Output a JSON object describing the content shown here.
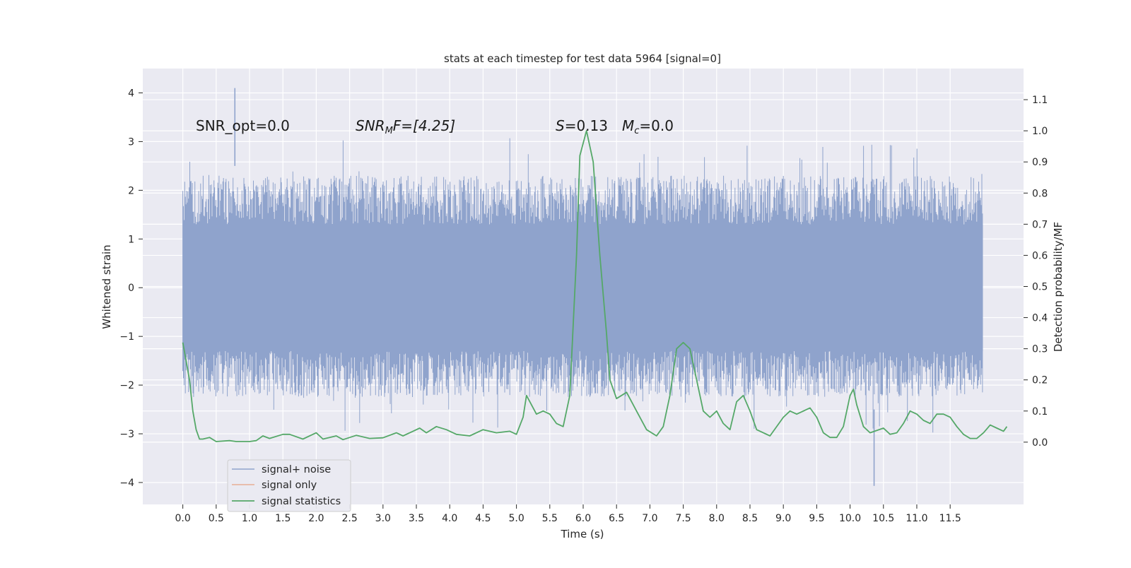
{
  "chart_data": {
    "type": "line",
    "title": "stats at each timestep for test data 5964 [signal=0]",
    "xlabel": "Time (s)",
    "ylabel": "Whitened strain",
    "ylabel_right": "Detection probability/MF",
    "xlim": [
      -0.6,
      12.6
    ],
    "ylim": [
      -4.45,
      4.5
    ],
    "ylim_right": [
      -0.2,
      1.2
    ],
    "x_ticks": [
      0.0,
      0.5,
      1.0,
      1.5,
      2.0,
      2.5,
      3.0,
      3.5,
      4.0,
      4.5,
      5.0,
      5.5,
      6.0,
      6.5,
      7.0,
      7.5,
      8.0,
      8.5,
      9.0,
      9.5,
      10.0,
      10.5,
      11.0,
      11.5
    ],
    "x_tick_labels": [
      "0.0",
      "0.5",
      "1.0",
      "1.5",
      "2.0",
      "2.5",
      "3.0",
      "3.5",
      "4.0",
      "4.5",
      "5.0",
      "5.5",
      "6.0",
      "6.5",
      "7.0",
      "7.5",
      "8.0",
      "8.5",
      "9.0",
      "9.5",
      "10.0",
      "10.5",
      "11.0",
      "11.5"
    ],
    "y_ticks": [
      4,
      3,
      2,
      1,
      0,
      -1,
      -2,
      -3,
      -4
    ],
    "y_tick_labels": [
      "4",
      "3",
      "2",
      "1",
      "0",
      "−1",
      "−2",
      "−3",
      "−4"
    ],
    "y_ticks_right": [
      1.1,
      1.0,
      0.9,
      0.8,
      0.7,
      0.6,
      0.5,
      0.4,
      0.3,
      0.2,
      0.1,
      0.0
    ],
    "y_tick_labels_right": [
      "1.1",
      "1.0",
      "0.9",
      "0.8",
      "0.7",
      "0.6",
      "0.5",
      "0.4",
      "0.3",
      "0.2",
      "0.1",
      "0.0"
    ],
    "grid": true,
    "legend_position": "lower-left",
    "annotations": {
      "snr_opt": "SNR_opt=0.0",
      "snr_mf_base": "SNR",
      "snr_mf_sub": "M",
      "snr_mf_rest": "F=[4.25]",
      "s_label": "S",
      "s_value": "=0.13",
      "mc_label": "M",
      "mc_sub": "c",
      "mc_value": "=0.0"
    },
    "series": [
      {
        "name": "signal+ noise",
        "color": "#8fa3cc",
        "x_range": [
          0.0,
          11.99
        ],
        "band_typical": [
          -1.3,
          1.3
        ],
        "band_common": [
          -2.2,
          2.3
        ],
        "extremes": {
          "max": 4.1,
          "max_at": 0.78,
          "min": -4.07,
          "min_at": 10.36
        }
      },
      {
        "name": "signal only",
        "color": "#dd8452",
        "points": []
      },
      {
        "name": "signal statistics",
        "color": "#55a868",
        "axis": "right",
        "points": [
          [
            0.0,
            0.32
          ],
          [
            0.05,
            0.26
          ],
          [
            0.1,
            0.2
          ],
          [
            0.15,
            0.1
          ],
          [
            0.2,
            0.04
          ],
          [
            0.25,
            0.01
          ],
          [
            0.3,
            0.01
          ],
          [
            0.4,
            0.015
          ],
          [
            0.5,
            0.002
          ],
          [
            0.7,
            0.005
          ],
          [
            0.8,
            0.002
          ],
          [
            1.0,
            0.002
          ],
          [
            1.1,
            0.005
          ],
          [
            1.2,
            0.02
          ],
          [
            1.3,
            0.012
          ],
          [
            1.5,
            0.025
          ],
          [
            1.6,
            0.025
          ],
          [
            1.8,
            0.01
          ],
          [
            2.0,
            0.03
          ],
          [
            2.1,
            0.01
          ],
          [
            2.3,
            0.02
          ],
          [
            2.4,
            0.008
          ],
          [
            2.6,
            0.022
          ],
          [
            2.8,
            0.012
          ],
          [
            3.0,
            0.014
          ],
          [
            3.2,
            0.03
          ],
          [
            3.3,
            0.02
          ],
          [
            3.45,
            0.035
          ],
          [
            3.55,
            0.045
          ],
          [
            3.65,
            0.03
          ],
          [
            3.8,
            0.05
          ],
          [
            3.95,
            0.04
          ],
          [
            4.1,
            0.025
          ],
          [
            4.3,
            0.02
          ],
          [
            4.5,
            0.04
          ],
          [
            4.7,
            0.03
          ],
          [
            4.9,
            0.035
          ],
          [
            5.0,
            0.025
          ],
          [
            5.1,
            0.08
          ],
          [
            5.15,
            0.15
          ],
          [
            5.2,
            0.13
          ],
          [
            5.3,
            0.09
          ],
          [
            5.4,
            0.1
          ],
          [
            5.5,
            0.09
          ],
          [
            5.6,
            0.06
          ],
          [
            5.7,
            0.05
          ],
          [
            5.8,
            0.15
          ],
          [
            5.9,
            0.6
          ],
          [
            5.95,
            0.92
          ],
          [
            6.05,
            1.0
          ],
          [
            6.15,
            0.9
          ],
          [
            6.25,
            0.6
          ],
          [
            6.35,
            0.35
          ],
          [
            6.4,
            0.2
          ],
          [
            6.5,
            0.14
          ],
          [
            6.65,
            0.16
          ],
          [
            6.8,
            0.1
          ],
          [
            6.95,
            0.04
          ],
          [
            7.1,
            0.02
          ],
          [
            7.2,
            0.05
          ],
          [
            7.3,
            0.15
          ],
          [
            7.4,
            0.3
          ],
          [
            7.5,
            0.32
          ],
          [
            7.6,
            0.3
          ],
          [
            7.7,
            0.2
          ],
          [
            7.8,
            0.1
          ],
          [
            7.9,
            0.08
          ],
          [
            8.0,
            0.1
          ],
          [
            8.1,
            0.06
          ],
          [
            8.2,
            0.04
          ],
          [
            8.3,
            0.13
          ],
          [
            8.4,
            0.15
          ],
          [
            8.5,
            0.1
          ],
          [
            8.6,
            0.04
          ],
          [
            8.8,
            0.02
          ],
          [
            9.0,
            0.08
          ],
          [
            9.1,
            0.1
          ],
          [
            9.2,
            0.09
          ],
          [
            9.3,
            0.1
          ],
          [
            9.4,
            0.11
          ],
          [
            9.5,
            0.08
          ],
          [
            9.6,
            0.03
          ],
          [
            9.7,
            0.015
          ],
          [
            9.8,
            0.015
          ],
          [
            9.9,
            0.05
          ],
          [
            10.0,
            0.15
          ],
          [
            10.05,
            0.17
          ],
          [
            10.1,
            0.12
          ],
          [
            10.2,
            0.05
          ],
          [
            10.3,
            0.03
          ],
          [
            10.5,
            0.045
          ],
          [
            10.6,
            0.025
          ],
          [
            10.7,
            0.03
          ],
          [
            10.8,
            0.06
          ],
          [
            10.9,
            0.1
          ],
          [
            11.0,
            0.09
          ],
          [
            11.1,
            0.07
          ],
          [
            11.2,
            0.06
          ],
          [
            11.3,
            0.09
          ],
          [
            11.4,
            0.09
          ],
          [
            11.5,
            0.08
          ],
          [
            11.6,
            0.05
          ],
          [
            11.7,
            0.025
          ],
          [
            11.8,
            0.012
          ],
          [
            11.9,
            0.012
          ],
          [
            12.0,
            0.03
          ],
          [
            12.1,
            0.055
          ],
          [
            12.2,
            0.045
          ],
          [
            12.3,
            0.035
          ],
          [
            12.35,
            0.05
          ]
        ]
      }
    ]
  }
}
